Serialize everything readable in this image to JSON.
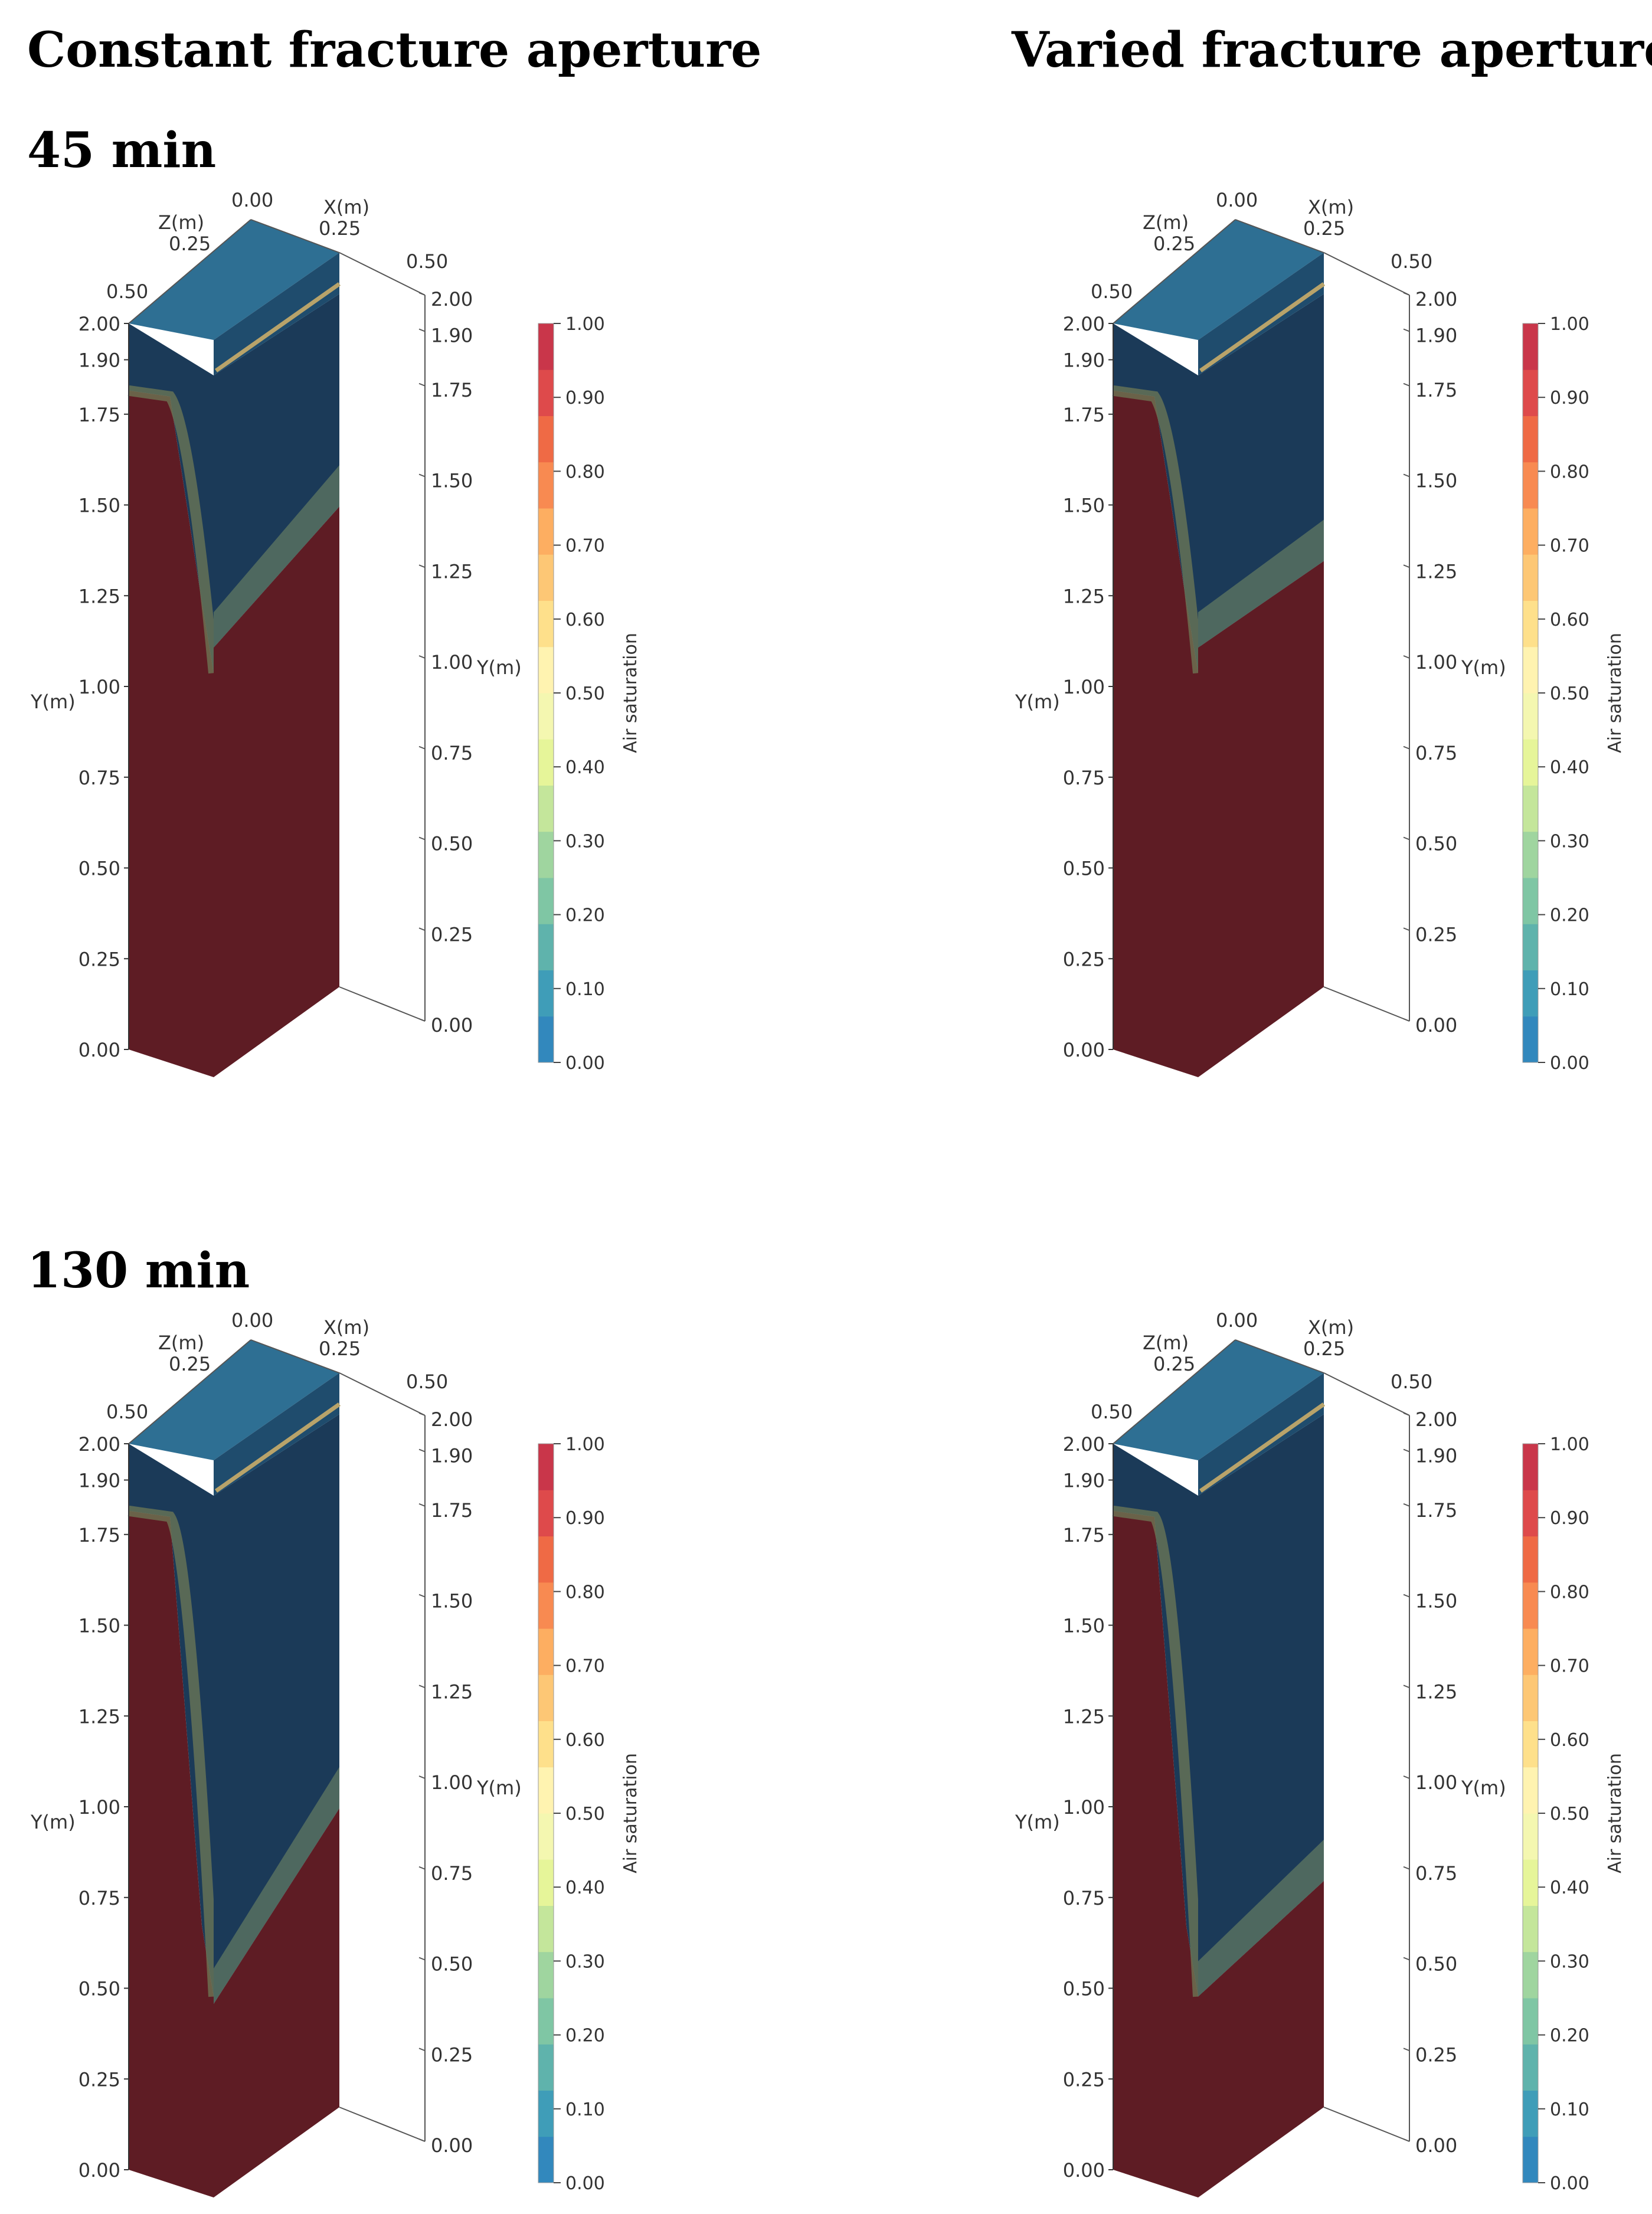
{
  "headings": {
    "left_column": "Constant fracture aperture",
    "right_column": "Varied fracture aperture",
    "row1": "45 min",
    "row2": "130 min"
  },
  "axes": {
    "x_label": "X(m)",
    "z_label": "Z(m)",
    "y_label": "Y(m)",
    "x_ticks": [
      "0.00",
      "0.25",
      "0.50"
    ],
    "z_ticks": [
      "0.25",
      "0.50"
    ],
    "y_left_ticks": [
      "2.00",
      "1.90",
      "1.75",
      "1.50",
      "1.25",
      "1.00",
      "0.75",
      "0.50",
      "0.25",
      "0.00"
    ],
    "y_right_ticks": [
      "2.00",
      "1.90",
      "1.75",
      "1.50",
      "1.25",
      "1.00",
      "0.75",
      "0.50",
      "0.25",
      "0.00"
    ]
  },
  "colorbar": {
    "title": "Air saturation",
    "ticks": [
      "1.00",
      "0.90",
      "0.80",
      "0.70",
      "0.60",
      "0.50",
      "0.40",
      "0.30",
      "0.20",
      "0.10",
      "0.00"
    ],
    "colors": [
      "#3288bd",
      "#3f9db8",
      "#5fb3ac",
      "#7fc6a4",
      "#9fd59f",
      "#c4e69b",
      "#e6f599",
      "#f4f7b0",
      "#fff3b0",
      "#fee08b",
      "#fdc775",
      "#fdae61",
      "#f88a51",
      "#ef6a45",
      "#de4a4b",
      "#c9364a"
    ]
  },
  "colors": {
    "dry_top": "#2e6f93",
    "wet_region": "#5e1c24",
    "dry_region": "#1b3a58"
  },
  "panels": [
    {
      "id": "constant-45",
      "front_front_y": 1.18,
      "side_front_y": 1.25,
      "side_back_y": 1.45,
      "wetting_front_y": 1.18
    },
    {
      "id": "varied-45",
      "front_front_y": 1.18,
      "side_front_y": 1.25,
      "side_back_y": 1.3,
      "wetting_front_y": 1.18
    },
    {
      "id": "constant-130",
      "front_front_y": 0.62,
      "side_front_y": 0.6,
      "side_back_y": 0.95,
      "wetting_front_y": 0.62
    },
    {
      "id": "varied-130",
      "front_front_y": 0.62,
      "side_front_y": 0.62,
      "side_back_y": 0.75,
      "wetting_front_y": 0.62
    }
  ]
}
